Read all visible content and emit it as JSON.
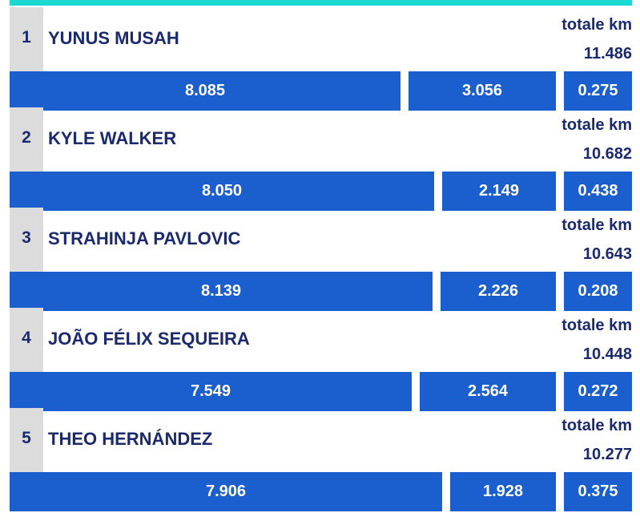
{
  "chart_data": {
    "type": "bar",
    "unit": "km",
    "total_label": "totale km",
    "players": [
      {
        "rank": "1",
        "name": "YUNUS MUSAH",
        "total": "11.486",
        "segments": [
          8.085,
          3.056,
          0.275
        ]
      },
      {
        "rank": "2",
        "name": "KYLE WALKER",
        "total": "10.682",
        "segments": [
          8.05,
          2.149,
          0.438
        ]
      },
      {
        "rank": "3",
        "name": "STRAHINJA PAVLOVIC",
        "total": "10.643",
        "segments": [
          8.139,
          2.226,
          0.208
        ]
      },
      {
        "rank": "4",
        "name": "JOÃO FÉLIX SEQUEIRA",
        "total": "10.448",
        "segments": [
          7.549,
          2.564,
          0.272
        ]
      },
      {
        "rank": "5",
        "name": "THEO HERNÁNDEZ",
        "total": "10.277",
        "segments": [
          7.906,
          1.928,
          0.375
        ]
      }
    ]
  },
  "colors": {
    "accent_strip": "#19d9d0",
    "bar": "#1b5fcf",
    "text": "#1a2a6c",
    "rank_background": "#dcdcdc"
  }
}
